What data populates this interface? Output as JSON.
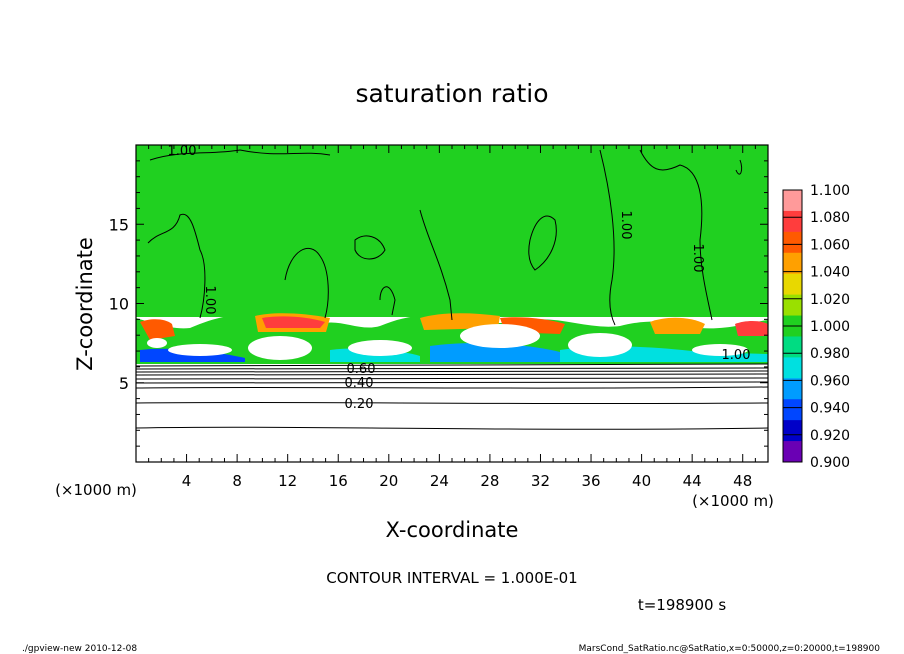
{
  "chart_data": {
    "type": "heatmap",
    "title": "saturation ratio",
    "xlabel": "X-coordinate",
    "ylabel": "Z-coordinate",
    "x_unit": "(×1000 m)",
    "y_unit": "(×1000 m)",
    "xlim": [
      0,
      50
    ],
    "ylim": [
      0,
      20
    ],
    "x_ticks": [
      4,
      8,
      12,
      16,
      20,
      24,
      28,
      32,
      36,
      40,
      44,
      48
    ],
    "y_ticks": [
      5,
      10,
      15
    ],
    "colorbar": {
      "levels": [
        1.1,
        1.08,
        1.06,
        1.04,
        1.02,
        1.0,
        0.98,
        0.96,
        0.94,
        0.92,
        0.9
      ],
      "labels": [
        "1.100",
        "1.080",
        "1.060",
        "1.040",
        "1.020",
        "1.000",
        "0.980",
        "0.960",
        "0.940",
        "0.920",
        "0.900"
      ],
      "colors": [
        "#ff9a9a",
        "#ff3d3d",
        "#ff5a00",
        "#ffa000",
        "#e8d800",
        "#9ae000",
        "#20d020",
        "#00dc82",
        "#00e0e0",
        "#009cff",
        "#0046ff",
        "#0000c8",
        "#6a00b4"
      ]
    },
    "contour_labels": [
      "1.00",
      "1.00",
      "1.00",
      "1.00",
      "1.00",
      "0.60",
      "0.40",
      "0.20"
    ],
    "contour_interval_text": "CONTOUR INTERVAL = 1.000E-01",
    "time_text": "t=198900 s"
  },
  "footer": {
    "left": "./gpview-new   2010-12-08",
    "right": "MarsCond_SatRatio.nc@SatRatio,x=0:50000,z=0:20000,t=198900"
  }
}
